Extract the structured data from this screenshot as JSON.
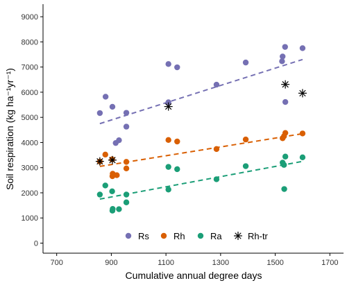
{
  "chart_data": {
    "type": "scatter",
    "title": "",
    "xlabel": "Cumulative annual degree days",
    "ylabel": "Soil respiration (kg  ha⁻¹yr⁻¹)",
    "xlim": [
      650,
      1750
    ],
    "ylim": [
      -400,
      9500
    ],
    "xticks": [
      700,
      900,
      1100,
      1300,
      1500,
      1700
    ],
    "yticks": [
      0,
      1000,
      2000,
      3000,
      4000,
      5000,
      6000,
      7000,
      8000,
      9000
    ],
    "grid": false,
    "legend_position": "bottom",
    "series": [
      {
        "name": "Rs",
        "color": "#7570b3",
        "marker": "circle",
        "points": [
          [
            858,
            5170
          ],
          [
            879,
            5820
          ],
          [
            904,
            5420
          ],
          [
            916,
            3980
          ],
          [
            928,
            4090
          ],
          [
            955,
            5180
          ],
          [
            955,
            4630
          ],
          [
            1109,
            7120
          ],
          [
            1109,
            5600
          ],
          [
            1141,
            6990
          ],
          [
            1285,
            6300
          ],
          [
            1392,
            7180
          ],
          [
            1525,
            7230
          ],
          [
            1527,
            7420
          ],
          [
            1536,
            7800
          ],
          [
            1537,
            5610
          ],
          [
            1600,
            7750
          ]
        ],
        "trend": [
          [
            858,
            4750
          ],
          [
            1600,
            7300
          ]
        ]
      },
      {
        "name": "Rh",
        "color": "#d95f02",
        "marker": "circle",
        "points": [
          [
            858,
            3240
          ],
          [
            878,
            3520
          ],
          [
            903,
            3330
          ],
          [
            904,
            2660
          ],
          [
            905,
            2760
          ],
          [
            920,
            2700
          ],
          [
            955,
            3230
          ],
          [
            955,
            2970
          ],
          [
            1109,
            4100
          ],
          [
            1141,
            4040
          ],
          [
            1285,
            3740
          ],
          [
            1392,
            4120
          ],
          [
            1527,
            4170
          ],
          [
            1532,
            4250
          ],
          [
            1537,
            4380
          ],
          [
            1600,
            4360
          ]
        ],
        "trend": [
          [
            858,
            3050
          ],
          [
            1600,
            4350
          ]
        ]
      },
      {
        "name": "Ra",
        "color": "#1b9e77",
        "marker": "circle",
        "points": [
          [
            858,
            1930
          ],
          [
            878,
            2290
          ],
          [
            903,
            2060
          ],
          [
            904,
            1290
          ],
          [
            905,
            1360
          ],
          [
            928,
            1350
          ],
          [
            955,
            1930
          ],
          [
            955,
            1620
          ],
          [
            1109,
            2130
          ],
          [
            1109,
            3030
          ],
          [
            1141,
            2940
          ],
          [
            1285,
            2540
          ],
          [
            1392,
            3060
          ],
          [
            1527,
            3200
          ],
          [
            1532,
            3110
          ],
          [
            1533,
            2150
          ],
          [
            1537,
            3440
          ],
          [
            1600,
            3410
          ]
        ],
        "trend": [
          [
            858,
            1750
          ],
          [
            1600,
            3250
          ]
        ]
      },
      {
        "name": "Rh-tr",
        "color": "#000000",
        "marker": "asterisk",
        "points": [
          [
            858,
            3250
          ],
          [
            904,
            3300
          ],
          [
            1109,
            5430
          ],
          [
            1537,
            6310
          ],
          [
            1600,
            5960
          ]
        ]
      }
    ]
  }
}
